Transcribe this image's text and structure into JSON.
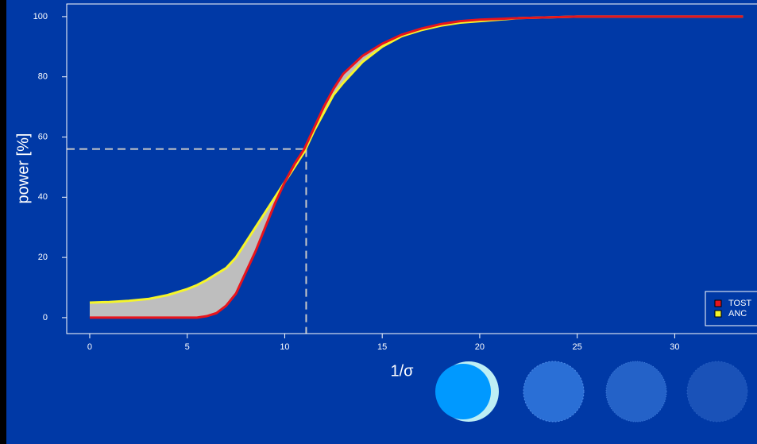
{
  "chart_data": {
    "type": "line",
    "x_label": "1/σ",
    "y_label": "power [%]",
    "x": [
      0,
      1,
      2,
      3,
      4,
      5,
      5.5,
      6,
      6.5,
      7,
      7.5,
      8,
      8.5,
      9,
      9.5,
      10,
      10.5,
      11,
      11.5,
      12,
      12.5,
      13,
      14,
      15,
      16,
      17,
      18,
      19,
      20,
      22,
      25,
      30,
      33.5
    ],
    "series": [
      {
        "name": "TOST",
        "color": "#e8141c",
        "values": [
          0,
          0,
          0,
          0,
          0,
          0,
          0,
          0.5,
          1.5,
          4,
          8,
          15,
          22,
          30,
          38,
          45,
          51,
          56,
          63,
          70,
          76,
          81,
          87,
          91,
          94,
          96,
          97.5,
          98.5,
          99,
          99.5,
          100,
          100,
          100
        ]
      },
      {
        "name": "ANC",
        "color": "#f5f52a",
        "values": [
          5,
          5.2,
          5.6,
          6.2,
          7.5,
          9.5,
          10.8,
          12.5,
          14.5,
          16.5,
          20,
          25,
          30,
          35,
          40,
          45,
          50,
          55,
          62,
          68,
          74,
          78,
          85,
          90,
          93.5,
          95.5,
          97,
          98,
          98.5,
          99.5,
          100,
          100,
          100
        ]
      }
    ],
    "fill_between": "#bebebe",
    "marker": {
      "x": 11.1,
      "y": 56
    },
    "xlim": [
      -1.18,
      34.22
    ],
    "ylim": [
      -5.3,
      104.2
    ],
    "xticks": [
      0,
      5,
      10,
      15,
      20,
      25,
      30
    ],
    "yticks": [
      0,
      20,
      40,
      60,
      80,
      100
    ],
    "legend": "bottom-right"
  }
}
